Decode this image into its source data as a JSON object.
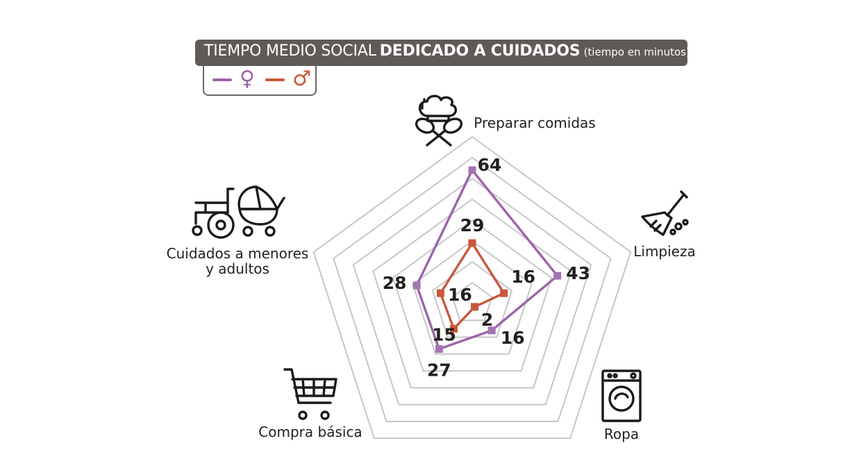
{
  "header": {
    "title_light": "TIEMPO MEDIO SOCIAL",
    "title_bold": "DEDICADO A CUIDADOS",
    "title_unit": "(tiempo en minutos)"
  },
  "legend": {
    "female_symbol": "♀",
    "male_symbol": "♂"
  },
  "colors": {
    "female": "#9b63a8",
    "female_marker": "#a774b3",
    "male": "#c8583a",
    "grid": "#c6c6c6",
    "title_bg": "#5f5a57"
  },
  "icons": [
    "chef-hat-cooking-icon",
    "broom-icon",
    "washing-machine-icon",
    "shopping-cart-icon",
    "wheelchair-icon",
    "baby-stroller-icon"
  ],
  "chart_data": {
    "type": "radar",
    "title": "TIEMPO MEDIO SOCIAL DEDICADO A CUIDADOS (tiempo en minutos)",
    "categories": [
      "Preparar comidas",
      "Limpieza",
      "Ropa",
      "Compra básica",
      "Cuidados a menores y adultos"
    ],
    "category_lines": [
      [
        "Preparar comidas"
      ],
      [
        "Limpieza"
      ],
      [
        "Ropa"
      ],
      [
        "Compra básica"
      ],
      [
        "Cuidados a menores",
        "y adultos"
      ]
    ],
    "series": [
      {
        "key": "female",
        "values": [
          64,
          43,
          16,
          27,
          28
        ]
      },
      {
        "key": "male",
        "values": [
          29,
          16,
          2,
          15,
          16
        ]
      }
    ],
    "rlim": [
      0,
      80
    ],
    "grid_rings": [
      10,
      20,
      30,
      40,
      50,
      60,
      70,
      80
    ],
    "legend": "top-left"
  }
}
